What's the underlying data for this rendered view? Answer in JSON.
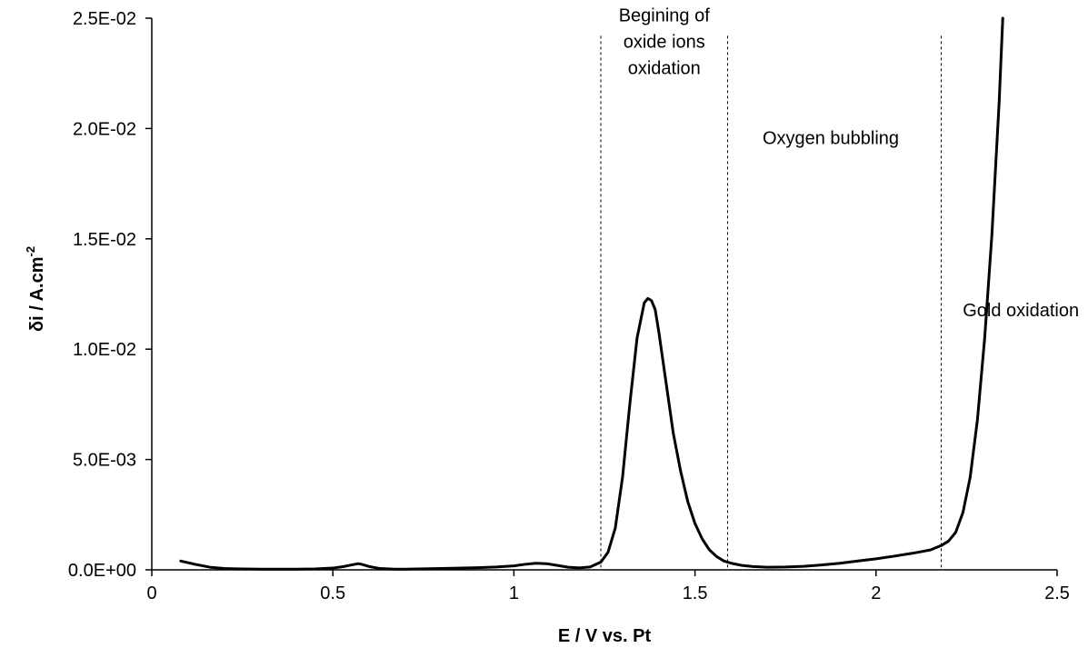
{
  "chart_data": {
    "type": "line",
    "title": "",
    "xlabel": "E / V vs. Pt",
    "ylabel": {
      "base": "δi / A.cm",
      "superscript": "-2"
    },
    "xlim": [
      0,
      2.5
    ],
    "ylim": [
      0,
      0.025
    ],
    "x_tick_labels": [
      "0",
      "0.5",
      "1",
      "1.5",
      "2",
      "2.5"
    ],
    "x_ticks": [
      0,
      0.5,
      1,
      1.5,
      2,
      2.5
    ],
    "y_tick_labels": [
      "0.0E+00",
      "5.0E-03",
      "1.0E-02",
      "1.5E-02",
      "2.0E-02",
      "2.5E-02"
    ],
    "y_ticks": [
      0,
      0.005,
      0.01,
      0.015,
      0.02,
      0.025
    ],
    "grid": false,
    "legend": "none",
    "line_color": "#000000",
    "series": [
      {
        "x": [
          0.08,
          0.12,
          0.16,
          0.2,
          0.25,
          0.3,
          0.35,
          0.4,
          0.45,
          0.5,
          0.53,
          0.56,
          0.57,
          0.58,
          0.6,
          0.63,
          0.67,
          0.7,
          0.8,
          0.9,
          0.95,
          1.0,
          1.03,
          1.06,
          1.09,
          1.12,
          1.15,
          1.18,
          1.21,
          1.24,
          1.26,
          1.28,
          1.3,
          1.32,
          1.34,
          1.36,
          1.37,
          1.38,
          1.39,
          1.4,
          1.42,
          1.44,
          1.46,
          1.48,
          1.5,
          1.52,
          1.54,
          1.56,
          1.58,
          1.6,
          1.63,
          1.66,
          1.7,
          1.75,
          1.8,
          1.85,
          1.9,
          1.95,
          2.0,
          2.05,
          2.1,
          2.15,
          2.18,
          2.2,
          2.22,
          2.24,
          2.26,
          2.28,
          2.3,
          2.32,
          2.34,
          2.35
        ],
        "y": [
          0.0004,
          0.00025,
          0.00012,
          6e-05,
          4e-05,
          3e-05,
          3e-05,
          3e-05,
          4e-05,
          8e-05,
          0.00015,
          0.00025,
          0.00028,
          0.00025,
          0.00015,
          6e-05,
          3e-05,
          3e-05,
          6e-05,
          0.0001,
          0.00013,
          0.00018,
          0.00025,
          0.0003,
          0.00028,
          0.0002,
          0.00012,
          9e-05,
          0.00013,
          0.00035,
          0.0008,
          0.0019,
          0.0042,
          0.0075,
          0.0105,
          0.0121,
          0.0123,
          0.0122,
          0.0118,
          0.0108,
          0.0085,
          0.0062,
          0.0045,
          0.0031,
          0.0021,
          0.0014,
          0.0009,
          0.0006,
          0.0004,
          0.0003,
          0.0002,
          0.00015,
          0.00012,
          0.00013,
          0.00016,
          0.00022,
          0.0003,
          0.0004,
          0.0005,
          0.00062,
          0.00075,
          0.0009,
          0.0011,
          0.0013,
          0.0017,
          0.0026,
          0.0042,
          0.0068,
          0.0105,
          0.0152,
          0.0212,
          0.025
        ]
      }
    ],
    "vlines": [
      1.24,
      1.59,
      2.18
    ],
    "annotations": [
      {
        "lines": [
          "Begining of",
          "oxide ions",
          "oxidation"
        ],
        "x": 1.415,
        "y": 0.02485
      },
      {
        "lines": [
          "Oxygen bubbling"
        ],
        "x": 1.875,
        "y": 0.0193
      },
      {
        "lines": [
          "Gold oxidation"
        ],
        "x": 2.4,
        "y": 0.0115
      }
    ]
  }
}
